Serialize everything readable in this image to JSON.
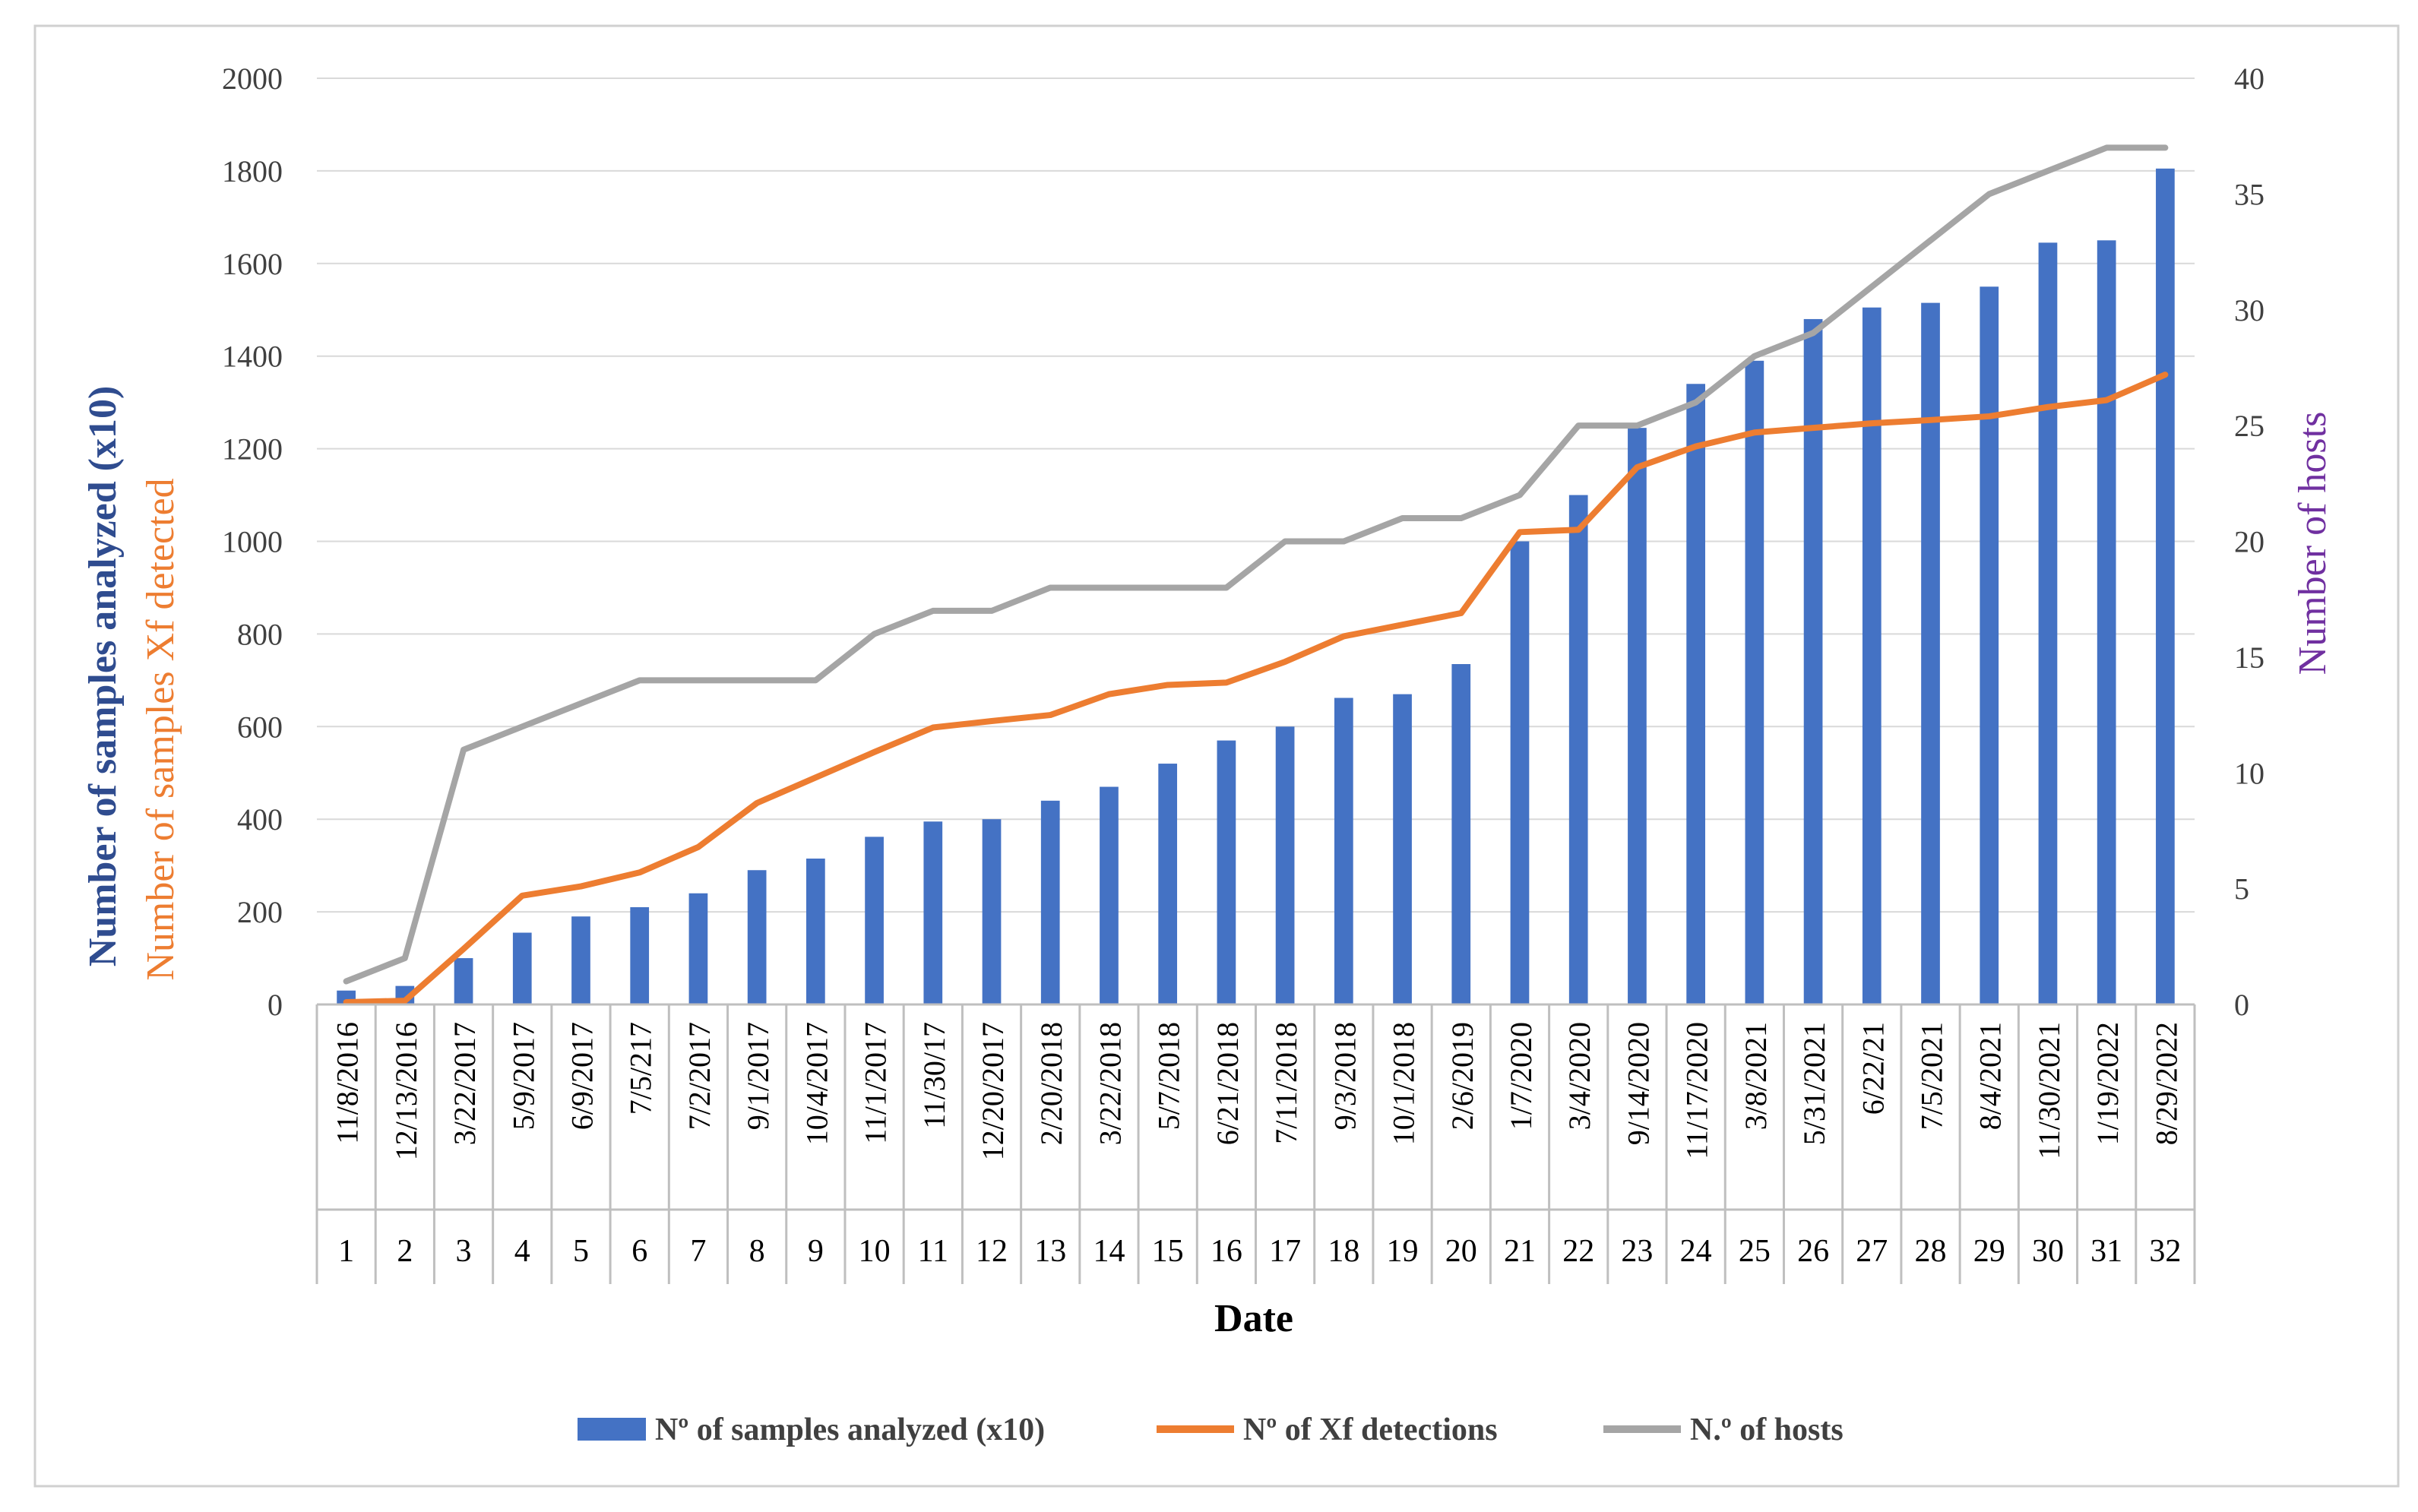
{
  "colors": {
    "bars": "#4472C4",
    "detections": "#ED7D31",
    "hosts": "#A5A5A5",
    "left_axis_title_1": "#2F4C8F",
    "left_axis_title_2": "#ED7D31",
    "right_axis_title": "#7030A0",
    "text": "#404040",
    "grid": "#D9D9D9",
    "frame": "#D0D0D0"
  },
  "chart_data": {
    "type": "bar",
    "title": "",
    "xlabel": "Date",
    "ylabel_primary_line1": "Number of samples analyzed (x10)",
    "ylabel_primary_line2": "Number of samples Xf detected",
    "ylabel_secondary": "Number of hosts",
    "ylim": [
      0,
      2000
    ],
    "ylim_secondary": [
      0,
      40
    ],
    "yticks": [
      "0",
      "200",
      "400",
      "600",
      "800",
      "1000",
      "1200",
      "1400",
      "1600",
      "1800",
      "2000"
    ],
    "yticks_secondary": [
      "0",
      "5",
      "10",
      "15",
      "20",
      "25",
      "30",
      "35",
      "40"
    ],
    "grid": true,
    "legend_position": "bottom",
    "dates": [
      "11/8/2016",
      "12/13/2016",
      "3/22/2017",
      "5/9/2017",
      "6/9/2017",
      "7/5/217",
      "7/2/2017",
      "9/1/2017",
      "10/4/2017",
      "11/1/2017",
      "11/30/17",
      "12/20/2017",
      "2/20/2018",
      "3/22/2018",
      "5/7/2018",
      "6/21/2018",
      "7/11/2018",
      "9/3/2018",
      "10/1/2018",
      "2/6/2019",
      "1/7/2020",
      "3/4/2020",
      "9/14/2020",
      "11/17/2020",
      "3/8/2021",
      "5/31/2021",
      "6/22/21",
      "7/5/2021",
      "8/4/2021",
      "11/30/2021",
      "1/19/2022",
      "8/29/2022"
    ],
    "indices": [
      "1",
      "2",
      "3",
      "4",
      "5",
      "6",
      "7",
      "8",
      "9",
      "10",
      "11",
      "12",
      "13",
      "14",
      "15",
      "16",
      "17",
      "18",
      "19",
      "20",
      "21",
      "22",
      "23",
      "24",
      "25",
      "26",
      "27",
      "28",
      "29",
      "30",
      "31",
      "32"
    ],
    "series": [
      {
        "name": "Nº of samples analyzed (x10)",
        "type": "bar",
        "axis": "primary",
        "values": [
          30,
          40,
          100,
          155,
          190,
          210,
          240,
          290,
          315,
          362,
          395,
          400,
          440,
          470,
          520,
          570,
          600,
          662,
          670,
          735,
          1000,
          1100,
          1245,
          1340,
          1390,
          1480,
          1505,
          1515,
          1550,
          1645,
          1650,
          1805
        ]
      },
      {
        "name": "Nº of Xf detections",
        "type": "line",
        "axis": "primary",
        "values": [
          5,
          8,
          120,
          235,
          255,
          285,
          340,
          435,
          490,
          545,
          598,
          612,
          625,
          670,
          690,
          695,
          740,
          795,
          820,
          845,
          1020,
          1025,
          1160,
          1205,
          1235,
          1245,
          1255,
          1262,
          1270,
          1290,
          1305,
          1360
        ]
      },
      {
        "name": "N.º of hosts",
        "type": "line",
        "axis": "secondary",
        "values": [
          1,
          2,
          11,
          12,
          13,
          14,
          14,
          14,
          14,
          16,
          17,
          17,
          18,
          18,
          18,
          18,
          20,
          20,
          21,
          21,
          22,
          25,
          25,
          26,
          28,
          29,
          31,
          33,
          35,
          36,
          37,
          37
        ]
      }
    ]
  }
}
